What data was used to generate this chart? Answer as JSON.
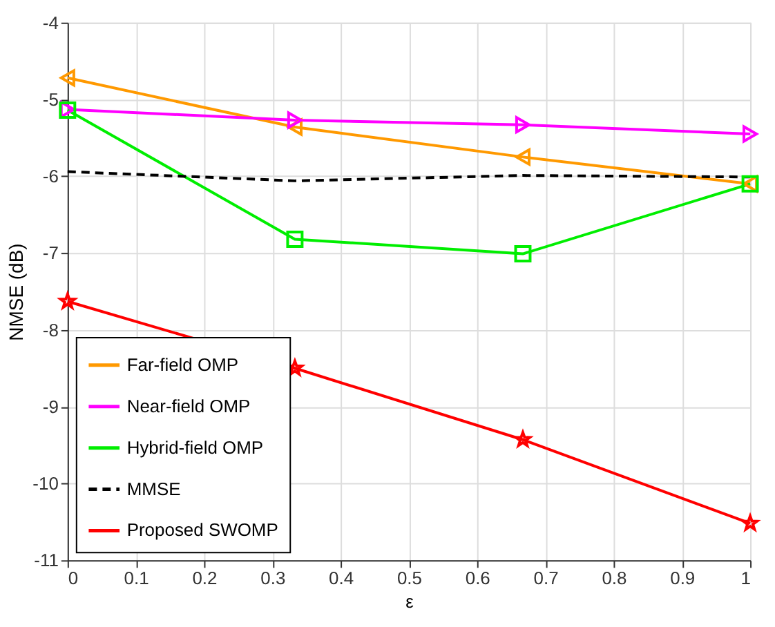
{
  "chart_data": {
    "type": "line",
    "xlabel": "ε",
    "ylabel": "NMSE (dB)",
    "x": [
      0,
      0.333,
      0.667,
      1
    ],
    "xlim": [
      0,
      1
    ],
    "xticks": [
      0,
      0.1,
      0.2,
      0.3,
      0.4,
      0.5,
      0.6,
      0.7,
      0.8,
      0.9,
      1
    ],
    "ylim": [
      -11,
      -4
    ],
    "yticks": [
      -11,
      -10,
      -9,
      -8,
      -7,
      -6,
      -5,
      -4
    ],
    "grid": true,
    "legend": "bottom left",
    "series": [
      {
        "name": "Far-field OMP",
        "color": "#ff9900",
        "marker": "triangle",
        "line_style": "solid",
        "values": [
          -4.72,
          -5.36,
          -5.75,
          -6.1
        ]
      },
      {
        "name": "Near-field OMP",
        "color": "#ff00ff",
        "marker": "triangle",
        "line_style": "solid",
        "values": [
          -5.13,
          -5.27,
          -5.33,
          -5.45
        ]
      },
      {
        "name": "Hybrid-field OMP",
        "color": "#00ee00",
        "marker": "square",
        "line_style": "solid",
        "values": [
          -5.14,
          -6.82,
          -7.01,
          -6.1
        ]
      },
      {
        "name": "MMSE",
        "color": "#000000",
        "marker": "none",
        "line_style": "dashed",
        "values": [
          -5.94,
          -6.06,
          -5.99,
          -6.01
        ]
      },
      {
        "name": "Proposed SWOMP",
        "color": "#ff0000",
        "marker": "star",
        "line_style": "solid",
        "values": [
          -7.63,
          -8.5,
          -9.43,
          -10.52
        ]
      }
    ]
  }
}
